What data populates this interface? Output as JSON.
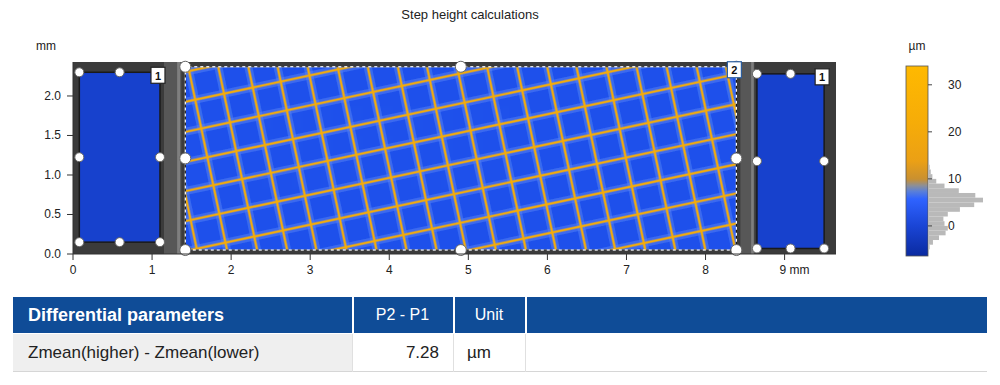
{
  "chart_data": {
    "type": "heatmap",
    "title": "Step height calculations",
    "y_label": "mm",
    "xlim": [
      0,
      9.65
    ],
    "ylim": [
      0,
      2.43
    ],
    "xticks": [
      0,
      1,
      2,
      3,
      4,
      5,
      6,
      7,
      8,
      {
        "value": 9,
        "label": "9 mm"
      }
    ],
    "yticks": [
      {
        "value": 0,
        "label": "0.0"
      },
      0.5,
      {
        "value": 1,
        "label": "1.0"
      },
      1.5,
      {
        "value": 2,
        "label": "2.0"
      }
    ],
    "colorbar": {
      "label": "µm",
      "range": [
        -6.4,
        34
      ],
      "ticks": [
        0,
        10,
        20,
        30
      ],
      "histogram": {
        "bins": [
          -6,
          -5,
          -4,
          -3,
          -2,
          -1,
          0,
          1,
          2,
          3,
          4,
          5,
          6,
          7,
          8,
          9,
          10,
          11,
          12,
          13,
          14,
          15,
          16
        ],
        "counts": [
          1,
          3,
          9,
          20,
          32,
          36,
          30,
          28,
          36,
          58,
          84,
          100,
          86,
          56,
          30,
          15,
          8,
          5,
          3,
          2,
          1,
          1
        ]
      }
    },
    "regions": [
      {
        "label": "1",
        "x": [
          0.08,
          1.1
        ],
        "y": [
          0.15,
          2.3
        ],
        "z": -1
      },
      {
        "label": "2",
        "x": [
          1.42,
          8.39
        ],
        "y": [
          0.05,
          2.37
        ],
        "z": 3,
        "ridge_z": 22,
        "ridges": [
          [
            1.3,
            -1.5,
            8.5,
            0.03
          ],
          [
            1.3,
            -1.12,
            8.5,
            0.41
          ],
          [
            1.3,
            -0.74,
            8.5,
            0.79
          ],
          [
            1.3,
            -0.37,
            8.5,
            1.16
          ],
          [
            1.3,
            0.01,
            8.5,
            1.54
          ],
          [
            1.3,
            0.39,
            8.5,
            1.92
          ],
          [
            1.3,
            0.77,
            8.5,
            2.3
          ],
          [
            1.3,
            1.14,
            8.5,
            2.67
          ],
          [
            1.3,
            1.52,
            8.5,
            3.05
          ],
          [
            1.3,
            1.9,
            8.5,
            3.43
          ],
          [
            1.3,
            2.28,
            8.5,
            3.81
          ],
          [
            1.6,
            -0.1,
            1.05,
            2.5
          ],
          [
            1.98,
            -0.1,
            1.43,
            2.5
          ],
          [
            2.36,
            -0.1,
            1.81,
            2.5
          ],
          [
            2.74,
            -0.1,
            2.19,
            2.5
          ],
          [
            3.11,
            -0.1,
            2.56,
            2.5
          ],
          [
            3.49,
            -0.1,
            2.94,
            2.5
          ],
          [
            3.87,
            -0.1,
            3.32,
            2.5
          ],
          [
            4.25,
            -0.1,
            3.7,
            2.5
          ],
          [
            4.63,
            -0.1,
            4.08,
            2.5
          ],
          [
            5.0,
            -0.1,
            4.45,
            2.5
          ],
          [
            5.38,
            -0.1,
            4.83,
            2.5
          ],
          [
            5.76,
            -0.1,
            5.21,
            2.5
          ],
          [
            6.14,
            -0.1,
            5.59,
            2.5
          ],
          [
            6.52,
            -0.1,
            5.97,
            2.5
          ],
          [
            6.89,
            -0.1,
            6.34,
            2.5
          ],
          [
            7.27,
            -0.1,
            6.72,
            2.5
          ],
          [
            7.65,
            -0.1,
            7.1,
            2.5
          ],
          [
            8.03,
            -0.1,
            7.48,
            2.5
          ],
          [
            8.41,
            -0.1,
            7.86,
            2.5
          ],
          [
            8.78,
            -0.1,
            8.23,
            2.5
          ]
        ]
      },
      {
        "label": "1",
        "x": [
          8.65,
          9.5
        ],
        "y": [
          0.07,
          2.28
        ],
        "z": -1
      }
    ]
  },
  "table": {
    "header": [
      "Differential parameters",
      "P2 - P1",
      "Unit"
    ],
    "rows": [
      [
        "Zmean(higher) - Zmean(lower)",
        7.28,
        "µm"
      ]
    ]
  }
}
